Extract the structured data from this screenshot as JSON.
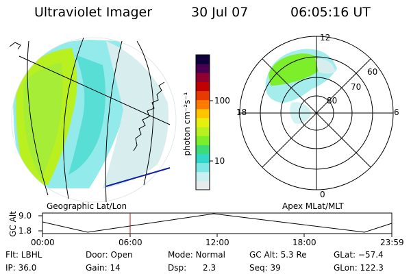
{
  "header": {
    "title": "Ultraviolet Imager",
    "date": "30 Jul 07",
    "time": "06:05:16 UT"
  },
  "colorbar": {
    "label": "photon cm⁻²s⁻¹",
    "ticks": [
      "100",
      "10"
    ],
    "colors": [
      "#e6ecec",
      "#c8f0f0",
      "#7fe6e6",
      "#33d6c8",
      "#3cdc78",
      "#7cee2a",
      "#b8f020",
      "#e6f010",
      "#ffc400",
      "#ff7a00",
      "#e63a00",
      "#c00000",
      "#900030",
      "#4a0050",
      "#10003c"
    ]
  },
  "panels": {
    "left_label": "Geographic Lat/Lon",
    "right_label": "Apex MLat/MLT",
    "mlat_labels": [
      "60",
      "70",
      "80"
    ],
    "mlt_labels": [
      "12",
      "18",
      "6",
      "0"
    ]
  },
  "altitude_plot": {
    "axis_title": "GC Alt",
    "y_ticks": [
      "9.0",
      "1.8"
    ],
    "x_ticks": [
      "00:00",
      "06:00",
      "12:00",
      "18:00",
      "23:59"
    ],
    "current_time_marker": "06:05"
  },
  "info": {
    "flt": "Flt: LBHL",
    "door": "Door: Open",
    "mode": "Mode: Normal",
    "gc_alt": "GC Alt: 5.3 Re",
    "glat": "GLat: −57.4",
    "ip": "IP: 36.0",
    "gain": "Gain: 14",
    "dsp_label": "Dsp:",
    "dsp_value": "2.3",
    "seq": "Seq: 39",
    "glon": "GLon: 122.3"
  }
}
